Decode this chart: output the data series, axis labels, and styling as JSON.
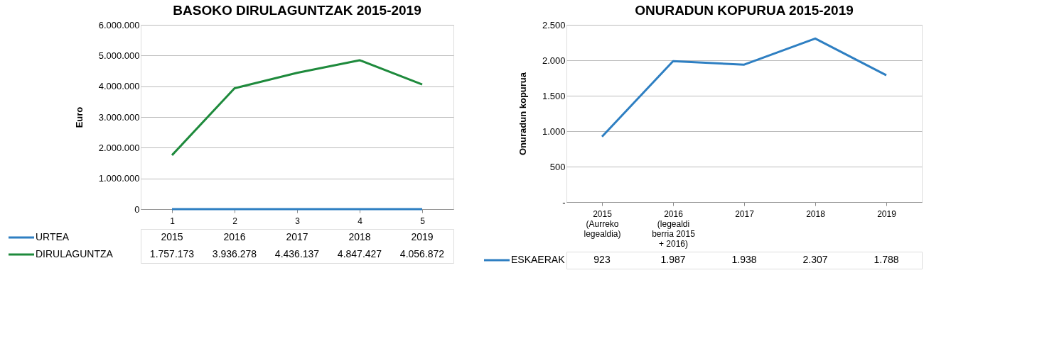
{
  "chart_data": [
    {
      "type": "line",
      "title": "BASOKO DIRULAGUNTZAK 2015-2019",
      "ylabel": "Euro",
      "categories": [
        "1",
        "2",
        "3",
        "4",
        "5"
      ],
      "series": [
        {
          "name": "URTEA",
          "color": "#2e7fc2",
          "values": [
            2015,
            2016,
            2017,
            2018,
            2019
          ],
          "value_labels": [
            "2015",
            "2016",
            "2017",
            "2018",
            "2019"
          ]
        },
        {
          "name": "DIRULAGUNTZA",
          "color": "#1e8a3c",
          "values": [
            1757173,
            3936278,
            4436137,
            4847427,
            4056872
          ],
          "value_labels": [
            "1.757.173",
            "3.936.278",
            "4.436.137",
            "4.847.427",
            "4.056.872"
          ]
        }
      ],
      "ylim": [
        0,
        6000000
      ],
      "yticks": [
        0,
        {
          "value": 1000000,
          "label": "1.000.000"
        },
        {
          "value": 2000000,
          "label": "2.000.000"
        },
        {
          "value": 3000000,
          "label": "3.000.000"
        },
        {
          "value": 4000000,
          "label": "4.000.000"
        },
        {
          "value": 5000000,
          "label": "5.000.000"
        },
        {
          "value": 6000000,
          "label": "6.000.000"
        }
      ],
      "grid": "y",
      "legend": "bottom"
    },
    {
      "type": "line",
      "title": "ONURADUN KOPURUA 2015-2019",
      "ylabel": "Onuradun kopurua",
      "categories": [
        "2015\n(Aurreko\nlegealdia)",
        "2016\n(legealdi\nberria 2015\n+ 2016)",
        "2017",
        "2018",
        "2019"
      ],
      "series": [
        {
          "name": "ESKAERAK",
          "color": "#2e7fc2",
          "values": [
            923,
            1987,
            1938,
            2307,
            1788
          ],
          "value_labels": [
            "923",
            "1.987",
            "1.938",
            "2.307",
            "1.788"
          ]
        }
      ],
      "ylim": [
        0,
        2500
      ],
      "yticks": [
        {
          "value": 0,
          "label": "-"
        },
        500,
        {
          "value": 1000,
          "label": "1.000"
        },
        {
          "value": 1500,
          "label": "1.500"
        },
        {
          "value": 2000,
          "label": "2.000"
        },
        {
          "value": 2500,
          "label": "2.500"
        }
      ],
      "grid": "y",
      "legend": "bottom"
    }
  ]
}
